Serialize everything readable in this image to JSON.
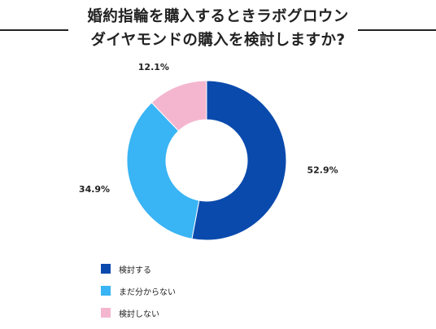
{
  "title": {
    "line1": "婚約指輪を購入するときラボグロウン",
    "line2": "ダイヤモンドの購入を検討しますか?"
  },
  "chart_data": {
    "type": "pie",
    "donut": true,
    "title": "婚約指輪を購入するときラボグロウンダイヤモンドの購入を検討しますか?",
    "categories": [
      "検討する",
      "まだ分からない",
      "検討しない"
    ],
    "values": [
      52.9,
      34.9,
      12.1
    ],
    "value_labels": [
      "52.9%",
      "34.9%",
      "12.1%"
    ],
    "colors": [
      "#0a4aad",
      "#39b4f4",
      "#f4b6cf"
    ],
    "legend_position": "bottom-left"
  }
}
